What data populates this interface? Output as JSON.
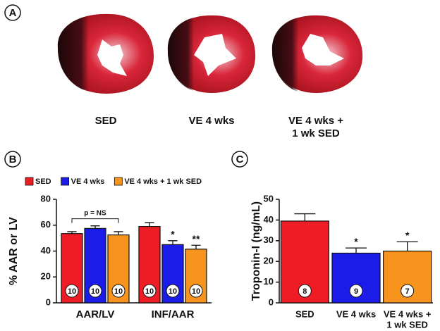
{
  "panel_a": {
    "label": "A",
    "captions": [
      [
        "SED"
      ],
      [
        "VE 4 wks"
      ],
      [
        "VE 4 wks +",
        "1 wk SED"
      ]
    ]
  },
  "chart_data": [
    {
      "type": "bar",
      "label": "B",
      "y_label": "% AAR or LV",
      "categories": [
        [
          "AAR/LV"
        ],
        [
          "INF/AAR"
        ]
      ],
      "ylim": [
        0,
        80
      ],
      "yticks": [
        0,
        20,
        40,
        60,
        80
      ],
      "bracket_label": "p = NS",
      "series": [
        {
          "name": "SED",
          "color": "#ee1c24",
          "values": [
            53.5,
            59
          ],
          "errors": [
            1.5,
            3
          ],
          "n_labels": [
            10,
            10
          ],
          "sig": [
            null,
            null
          ]
        },
        {
          "name": "VE 4 wks",
          "color": "#1c1ce8",
          "values": [
            57.5,
            45
          ],
          "errors": [
            2,
            3
          ],
          "n_labels": [
            10,
            10
          ],
          "sig": [
            null,
            "*"
          ]
        },
        {
          "name": "VE 4 wks + 1 wk SED",
          "color": "#f7941d",
          "values": [
            52.5,
            41.5
          ],
          "errors": [
            2.5,
            3
          ],
          "n_labels": [
            10,
            10
          ],
          "sig": [
            null,
            "**"
          ]
        }
      ]
    },
    {
      "type": "bar",
      "label": "C",
      "y_label": "Troponin-I (ng/mL)",
      "categories": [
        [
          "SED"
        ],
        [
          "VE 4 wks"
        ],
        [
          "VE 4 wks +",
          "1 wk SED"
        ]
      ],
      "ylim": [
        0,
        50
      ],
      "yticks": [
        0,
        10,
        20,
        30,
        40,
        50
      ],
      "series": [
        {
          "colors": [
            "#ee1c24",
            "#1c1ce8",
            "#f7941d"
          ],
          "values": [
            39.5,
            24,
            25
          ],
          "errors": [
            3.5,
            2.5,
            4.5
          ],
          "n_labels": [
            8,
            9,
            7
          ],
          "sig": [
            null,
            "*",
            "*"
          ]
        }
      ]
    }
  ]
}
